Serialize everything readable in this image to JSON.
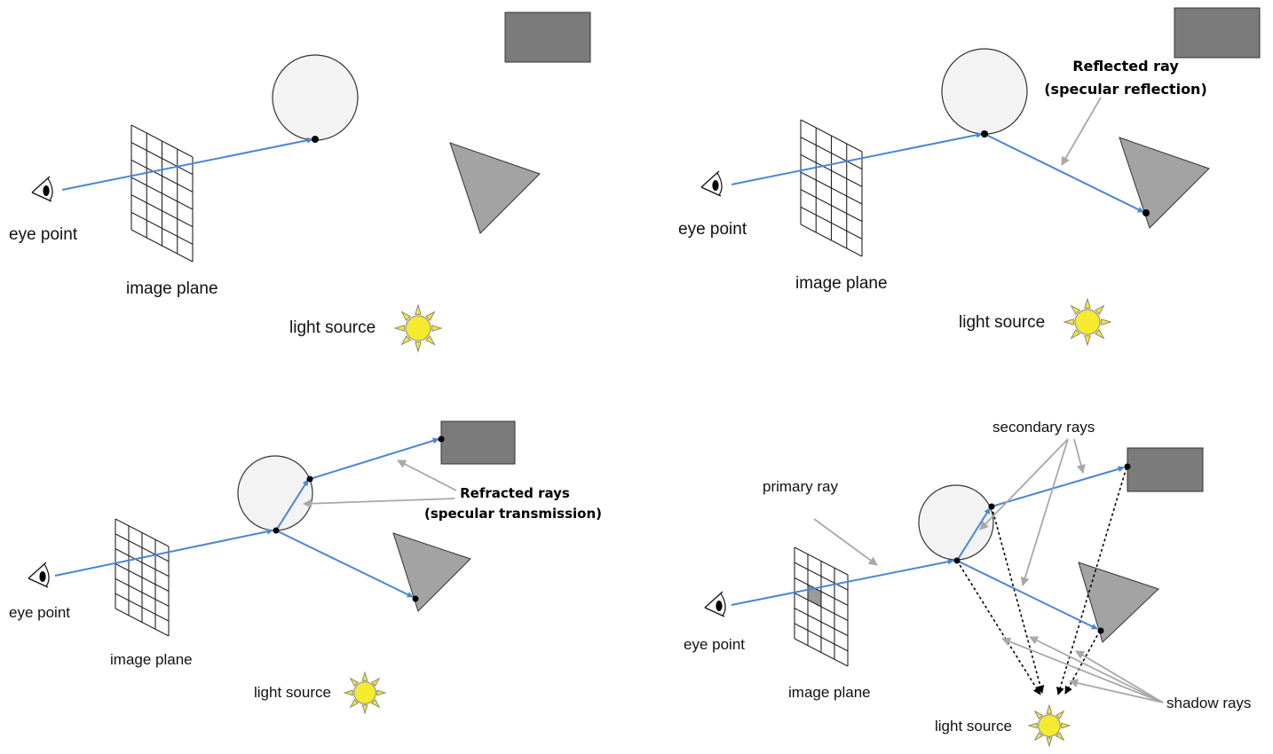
{
  "colors": {
    "ray": "#4a86d6",
    "annotation_arrow": "#a8a8a8",
    "sphere_fill": "#f3f3f3",
    "box_fill": "#7b7b7b",
    "triangle_fill": "#a3a3a3",
    "sun_fill": "#f5ea2e",
    "sun_stroke": "#888888",
    "highlighted_pixel": "#9a9a9a"
  },
  "panels": [
    {
      "eye_label": "eye point",
      "plane_label": "image plane",
      "light_label": "light source"
    },
    {
      "eye_label": "eye point",
      "plane_label": "image plane",
      "light_label": "light source",
      "reflected_label": [
        "Reflected ray",
        "(specular reflection)"
      ]
    },
    {
      "eye_label": "eye point",
      "plane_label": "image plane",
      "light_label": "light source",
      "refracted_label": [
        "Refracted rays",
        "(specular transmission)"
      ]
    },
    {
      "eye_label": "eye point",
      "plane_label": "image plane",
      "light_label": "light source",
      "primary_label": "primary ray",
      "secondary_label": "secondary rays",
      "shadow_label": "shadow rays"
    }
  ],
  "icons": [
    "eye-icon",
    "sun-icon"
  ]
}
